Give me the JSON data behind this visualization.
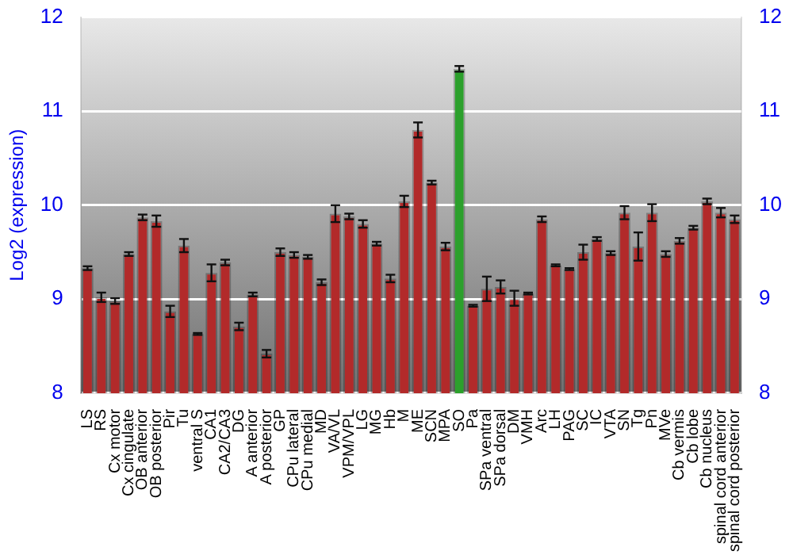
{
  "chart_data": {
    "type": "bar",
    "ylabel": "Log2 (expression)",
    "categories": [
      "LS",
      "RS",
      "Cx motor",
      "Cx cingulate",
      "OB anterior",
      "OB posterior",
      "Pir",
      "Tu",
      "ventral S",
      "CA1",
      "CA2/CA3",
      "DG",
      "A anterior",
      "A posterior",
      "GP",
      "CPu lateral",
      "CPu medial",
      "MD",
      "VA/VL",
      "VPM/VPL",
      "LG",
      "MG",
      "Hb",
      "M",
      "ME",
      "SCN",
      "MPA",
      "SO",
      "Pa",
      "SPa ventral",
      "SPa dorsal",
      "DM",
      "VMH",
      "Arc",
      "LH",
      "PAG",
      "SC",
      "IC",
      "VTA",
      "SN",
      "Tg",
      "Pn",
      "MVe",
      "Cb vermis",
      "Cb lobe",
      "Cb nucleus",
      "spinal cord anterior",
      "spinal cord posterior"
    ],
    "values": [
      9.33,
      9.02,
      8.98,
      9.48,
      9.87,
      9.83,
      8.87,
      9.57,
      8.63,
      9.28,
      9.39,
      8.71,
      9.05,
      8.42,
      9.5,
      9.47,
      9.45,
      9.18,
      9.91,
      9.88,
      9.8,
      9.59,
      9.22,
      10.04,
      10.8,
      10.24,
      9.56,
      11.45,
      8.93,
      9.11,
      9.13,
      9.01,
      9.06,
      9.85,
      9.36,
      9.32,
      9.5,
      9.64,
      9.49,
      9.92,
      9.56,
      9.92,
      9.48,
      9.62,
      9.76,
      10.04,
      9.92,
      9.85
    ],
    "errors": [
      0.02,
      0.05,
      0.03,
      0.02,
      0.03,
      0.06,
      0.06,
      0.07,
      0.01,
      0.09,
      0.03,
      0.04,
      0.02,
      0.04,
      0.04,
      0.03,
      0.02,
      0.03,
      0.09,
      0.03,
      0.04,
      0.02,
      0.04,
      0.06,
      0.08,
      0.02,
      0.04,
      0.03,
      0.01,
      0.13,
      0.07,
      0.08,
      0.01,
      0.03,
      0.01,
      0.01,
      0.08,
      0.02,
      0.02,
      0.07,
      0.15,
      0.09,
      0.03,
      0.03,
      0.02,
      0.03,
      0.05,
      0.04
    ],
    "colors": [
      "#b22a2a",
      "#b22a2a",
      "#b22a2a",
      "#b22a2a",
      "#b22a2a",
      "#b22a2a",
      "#b22a2a",
      "#b22a2a",
      "#b22a2a",
      "#b22a2a",
      "#b22a2a",
      "#b22a2a",
      "#b22a2a",
      "#b22a2a",
      "#b22a2a",
      "#b22a2a",
      "#b22a2a",
      "#b22a2a",
      "#b22a2a",
      "#b22a2a",
      "#b22a2a",
      "#b22a2a",
      "#b22a2a",
      "#b22a2a",
      "#b22a2a",
      "#b22a2a",
      "#b22a2a",
      "#2ca02c",
      "#b22a2a",
      "#b22a2a",
      "#b22a2a",
      "#b22a2a",
      "#b22a2a",
      "#b22a2a",
      "#b22a2a",
      "#b22a2a",
      "#b22a2a",
      "#b22a2a",
      "#b22a2a",
      "#b22a2a",
      "#b22a2a",
      "#b22a2a",
      "#b22a2a",
      "#b22a2a",
      "#b22a2a",
      "#b22a2a",
      "#b22a2a",
      "#b22a2a"
    ],
    "ylim": [
      8,
      12
    ],
    "yticks": [
      8,
      9,
      10,
      11,
      12
    ],
    "y2lim": [
      8,
      12
    ],
    "y2ticks": [
      8,
      9,
      10,
      11,
      12
    ],
    "grid": "y",
    "legend": false
  }
}
